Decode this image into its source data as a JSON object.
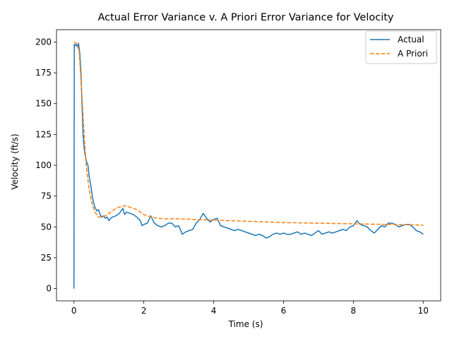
{
  "chart_data": {
    "type": "line",
    "title": "Actual Error Variance v. A Priori Error Variance for Velocity",
    "xlabel": "Time (s)",
    "ylabel": "Velocity (ft/s)",
    "xlim": [
      -0.5,
      10.5
    ],
    "ylim": [
      -10,
      210
    ],
    "xticks": [
      0,
      2,
      4,
      6,
      8,
      10
    ],
    "xtick_labels": [
      "0",
      "2",
      "4",
      "6",
      "8",
      "10"
    ],
    "yticks": [
      0,
      25,
      50,
      75,
      100,
      125,
      150,
      175,
      200
    ],
    "ytick_labels": [
      "0",
      "25",
      "50",
      "75",
      "100",
      "125",
      "150",
      "175",
      "200"
    ],
    "grid": false,
    "legend_position": "top-right",
    "series": [
      {
        "name": "Actual",
        "color": "#1f77b4",
        "style": "solid",
        "x": [
          0,
          0.01,
          0.03,
          0.06,
          0.1,
          0.13,
          0.17,
          0.2,
          0.23,
          0.26,
          0.29,
          0.32,
          0.36,
          0.4,
          0.44,
          0.48,
          0.52,
          0.56,
          0.6,
          0.65,
          0.7,
          0.75,
          0.8,
          0.85,
          0.9,
          0.95,
          1.0,
          1.05,
          1.1,
          1.2,
          1.3,
          1.4,
          1.45,
          1.5,
          1.6,
          1.7,
          1.8,
          1.9,
          1.95,
          2.0,
          2.1,
          2.2,
          2.3,
          2.4,
          2.5,
          2.6,
          2.7,
          2.8,
          2.9,
          3.0,
          3.1,
          3.2,
          3.3,
          3.4,
          3.5,
          3.6,
          3.7,
          3.8,
          3.9,
          4.0,
          4.1,
          4.2,
          4.3,
          4.4,
          4.5,
          4.6,
          4.7,
          4.8,
          4.9,
          5.0,
          5.1,
          5.2,
          5.3,
          5.4,
          5.5,
          5.6,
          5.7,
          5.8,
          5.9,
          6.0,
          6.1,
          6.2,
          6.3,
          6.4,
          6.5,
          6.6,
          6.7,
          6.8,
          6.9,
          7.0,
          7.1,
          7.2,
          7.3,
          7.4,
          7.5,
          7.6,
          7.7,
          7.8,
          7.9,
          8.0,
          8.1,
          8.2,
          8.3,
          8.4,
          8.5,
          8.6,
          8.7,
          8.8,
          8.9,
          9.0,
          9.1,
          9.2,
          9.3,
          9.4,
          9.5,
          9.6,
          9.7,
          9.8,
          9.9,
          10.0
        ],
        "y": [
          0,
          198,
          197,
          198,
          196,
          199,
          190,
          175,
          150,
          125,
          114,
          108,
          103,
          100,
          90,
          84,
          76,
          70,
          66,
          63,
          64,
          60,
          58,
          59,
          57,
          58,
          55,
          57,
          58,
          59,
          61,
          65,
          60,
          62,
          61,
          60,
          58,
          55,
          51,
          52,
          53,
          59,
          53,
          51,
          50,
          51,
          53,
          53,
          50,
          51,
          44,
          46,
          47,
          48,
          53,
          56,
          61,
          57,
          54,
          56,
          57,
          51,
          50,
          49,
          48,
          47,
          48,
          47,
          46,
          45,
          44,
          43,
          44,
          43,
          41,
          42,
          44,
          45,
          44,
          45,
          44,
          44,
          45,
          46,
          44,
          45,
          44,
          43,
          45,
          47,
          44,
          45,
          46,
          45,
          46,
          47,
          48,
          47,
          50,
          51,
          55,
          52,
          51,
          50,
          47,
          45,
          48,
          51,
          50,
          53,
          53,
          52,
          50,
          51,
          52,
          52,
          50,
          47,
          46,
          44
        ]
      },
      {
        "name": "A Priori",
        "color": "#ff7f0e",
        "style": "dashed",
        "x": [
          0,
          0.05,
          0.1,
          0.15,
          0.2,
          0.25,
          0.3,
          0.35,
          0.4,
          0.45,
          0.5,
          0.55,
          0.6,
          0.65,
          0.7,
          0.75,
          0.8,
          0.9,
          1.0,
          1.1,
          1.2,
          1.3,
          1.4,
          1.5,
          1.6,
          1.7,
          1.8,
          1.9,
          2.0,
          2.2,
          2.4,
          2.6,
          2.8,
          3.0,
          3.5,
          4.0,
          5.0,
          6.0,
          7.0,
          8.0,
          9.0,
          10.0
        ],
        "y": [
          200,
          199,
          198,
          192,
          170,
          145,
          120,
          100,
          88,
          78,
          71,
          66,
          62,
          60,
          58,
          58,
          58,
          59,
          61,
          63,
          65,
          66,
          67,
          67,
          66,
          65,
          64,
          62,
          60,
          58,
          57,
          56.5,
          56.5,
          56.5,
          56,
          55.5,
          54.5,
          53.5,
          53,
          52.5,
          52,
          51.5
        ]
      }
    ]
  }
}
